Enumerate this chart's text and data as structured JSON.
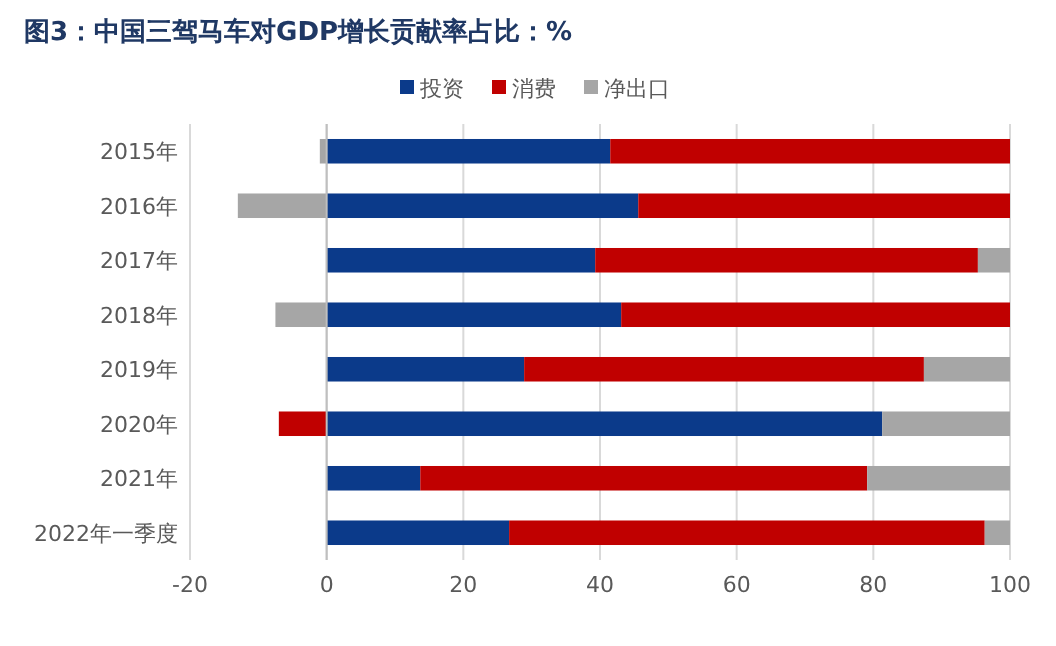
{
  "chart_data": {
    "type": "bar",
    "orientation": "horizontal",
    "stacked": true,
    "title": "图3：中国三驾马车对GDP增长贡献率占比：%",
    "categories": [
      "2015年",
      "2016年",
      "2017年",
      "2018年",
      "2019年",
      "2020年",
      "2021年",
      "2022年一季度"
    ],
    "series": [
      {
        "name": "投资",
        "color": "#0b3a8a",
        "values": [
          41.5,
          45.6,
          39.3,
          43.1,
          28.9,
          81.3,
          13.7,
          26.7
        ]
      },
      {
        "name": "消费",
        "color": "#c00000",
        "values": [
          58.5,
          54.4,
          56,
          56.9,
          58.5,
          -7,
          65.4,
          69.6
        ]
      },
      {
        "name": "净出口",
        "color": "#a6a6a6",
        "values": [
          -1,
          -13,
          4.7,
          -7.5,
          12.6,
          18.7,
          20.9,
          3.7
        ]
      }
    ],
    "xlim": [
      -20,
      100
    ],
    "xticks": [
      -20,
      0,
      20,
      40,
      60,
      80,
      100
    ],
    "grid": "x",
    "legend": "top"
  }
}
